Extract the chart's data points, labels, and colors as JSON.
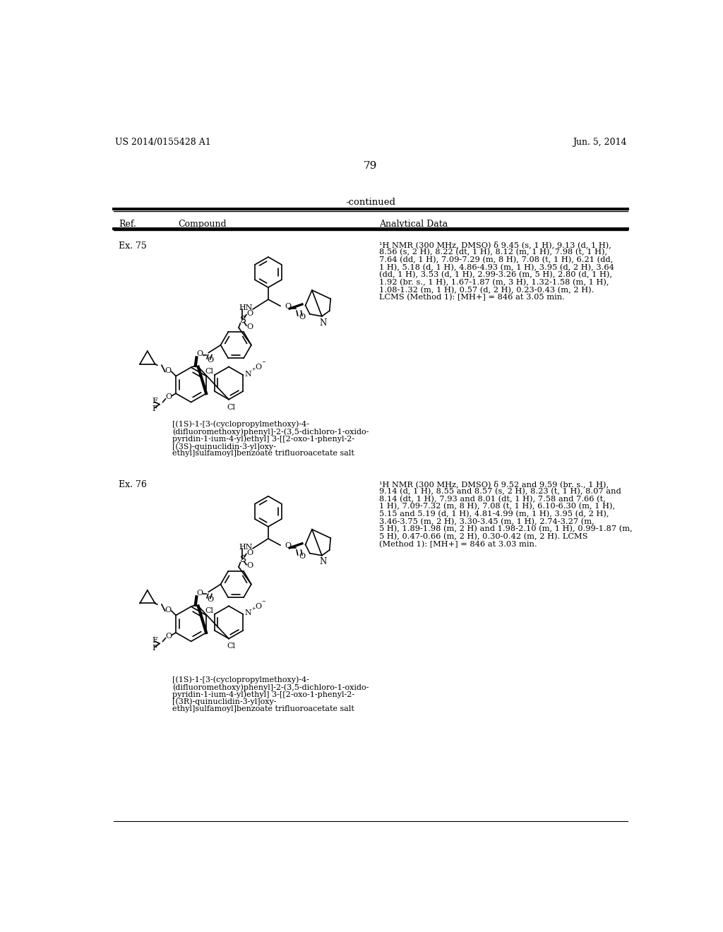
{
  "bg_color": "#ffffff",
  "header_left": "US 2014/0155428 A1",
  "header_right": "Jun. 5, 2014",
  "page_number": "79",
  "continued_text": "-continued",
  "col_ref": "Ref.",
  "col_compound": "Compound",
  "col_data": "Analytical Data",
  "entry1_ref": "Ex. 75",
  "entry1_nmr": [
    "¹H NMR (300 MHz, DMSO) δ 9.45 (s, 1 H), 9.13 (d, 1 H),",
    "8.56 (s, 2 H), 8.22 (dt, 1 H), 8.12 (m, 1 H), 7.98 (t, 1 H),",
    "7.64 (dd, 1 H), 7.09-7.29 (m, 8 H), 7.08 (t, 1 H), 6.21 (dd,",
    "1 H), 5.18 (d, 1 H), 4.86-4.93 (m, 1 H), 3.95 (d, 2 H), 3.64",
    "(dd, 1 H), 3.53 (d, 1 H), 2.99-3.26 (m, 5 H), 2.80 (d, 1 H),",
    "1.92 (br. s., 1 H), 1.67-1.87 (m, 3 H), 1.32-1.58 (m, 1 H),",
    "1.08-1.32 (m, 1 H), 0.57 (d, 2 H), 0.23-0.43 (m, 2 H).",
    "LCMS (Method 1): [MH+] = 846 at 3.05 min."
  ],
  "entry1_name": [
    "[(1S)-1-[3-(cyclopropylmethoxy)-4-",
    "(difluoromethoxy)phenyl]-2-(3,5-dichloro-1-oxido-",
    "pyridin-1-ium-4-yl)ethyl] 3-[[2-oxo-1-phenyl-2-",
    "[(3S)-quinuclidin-3-yl]oxy-",
    "ethyl]sulfamoyl]benzoate trifluoroacetate salt"
  ],
  "entry2_ref": "Ex. 76",
  "entry2_nmr": [
    "¹H NMR (300 MHz, DMSO) δ 9.52 and 9.59 (br. s., 1 H),",
    "9.14 (d, 1 H), 8.55 and 8.57 (s, 2 H), 8.23 (t, 1 H), 8.07 and",
    "8.14 (dt, 1 H), 7.93 and 8.01 (dt, 1 H), 7.58 and 7.66 (t,",
    "1 H), 7.09-7.32 (m, 8 H), 7.08 (t, 1 H), 6.10-6.30 (m, 1 H),",
    "5.15 and 5.19 (d, 1 H), 4.81-4.99 (m, 1 H), 3.95 (d, 2 H),",
    "3.46-3.75 (m, 2 H), 3.30-3.45 (m, 1 H), 2.74-3.27 (m,",
    "5 H), 1.89-1.98 (m, 2 H) and 1.98-2.10 (m, 1 H), 0.99-1.87 (m,",
    "5 H), 0.47-0.66 (m, 2 H), 0.30-0.42 (m, 2 H). LCMS",
    "(Method 1): [MH+] = 846 at 3.03 min."
  ],
  "entry2_name": [
    "[(1S)-1-[3-(cyclopropylmethoxy)-4-",
    "(difluoromethoxy)phenyl]-2-(3,5-dichloro-1-oxido-",
    "pyridin-1-ium-4-yl)ethyl] 3-[[2-oxo-1-phenyl-2-",
    "[(3R)-quinuclidin-3-yl]oxy-",
    "ethyl]sulfamoyl]benzoate trifluoroacetate salt"
  ],
  "lw": 1.2,
  "font_size_header": 9.0,
  "font_size_nmr": 8.2,
  "font_size_name": 8.0,
  "font_size_ref": 9.0,
  "font_size_page": 11.0
}
